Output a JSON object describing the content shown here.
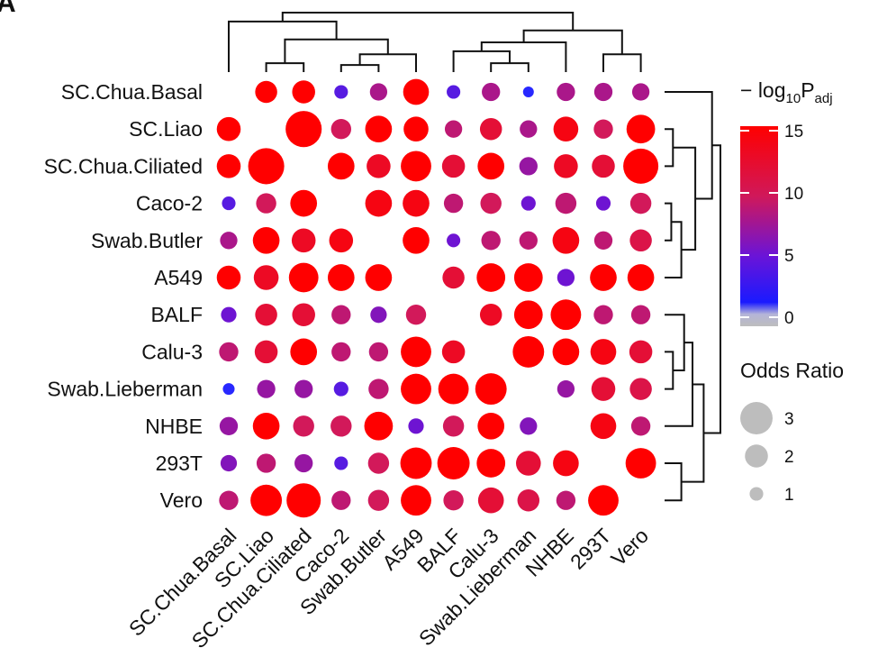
{
  "panel_label": "A",
  "chart_data": {
    "type": "heatmap",
    "subtype": "dot-matrix with hierarchical clustering",
    "labels": [
      "SC.Chua.Basal",
      "SC.Liao",
      "SC.Chua.Ciliated",
      "Caco-2",
      "Swab.Butler",
      "A549",
      "BALF",
      "Calu-3",
      "Swab.Lieberman",
      "NHBE",
      "293T",
      "Vero"
    ],
    "color_legend": {
      "title": "− log10Padj",
      "title_parts": {
        "prefix": "− log",
        "base": "10",
        "letter": "P",
        "subscript": "adj"
      },
      "ticks": [
        0,
        5,
        10,
        15
      ],
      "range": [
        0,
        15
      ],
      "colors": [
        "#bdbdbd",
        "#0000ff",
        "#ff0000"
      ]
    },
    "size_legend": {
      "title": "Odds Ratio",
      "values": [
        3,
        2,
        1
      ],
      "color": "#bdbdbd"
    },
    "odds_ratio": [
      [
        null,
        1.9,
        2.0,
        1.0,
        1.4,
        2.3,
        1.0,
        1.5,
        0.7,
        1.5,
        1.5,
        1.4
      ],
      [
        2.1,
        null,
        3.4,
        1.7,
        2.4,
        2.2,
        1.4,
        1.9,
        1.4,
        2.2,
        1.6,
        2.6
      ],
      [
        2.1,
        3.4,
        null,
        2.4,
        2.1,
        2.8,
        2.0,
        2.4,
        1.5,
        2.1,
        2.0,
        3.3
      ],
      [
        1.0,
        1.7,
        2.4,
        null,
        2.4,
        2.4,
        1.6,
        1.8,
        1.1,
        1.8,
        1.1,
        1.8
      ],
      [
        1.4,
        2.4,
        2.1,
        2.1,
        null,
        2.4,
        1.0,
        1.6,
        1.5,
        2.4,
        1.5,
        1.9
      ],
      [
        2.1,
        2.2,
        2.7,
        2.4,
        2.4,
        null,
        1.9,
        2.6,
        2.6,
        1.4,
        2.4,
        2.4
      ],
      [
        1.2,
        1.9,
        2.0,
        1.6,
        1.3,
        1.7,
        null,
        1.9,
        2.6,
        2.8,
        1.6,
        1.6
      ],
      [
        1.6,
        2.0,
        2.4,
        1.6,
        1.6,
        2.8,
        2.0,
        null,
        2.9,
        2.4,
        2.3,
        2.0
      ],
      [
        0.8,
        1.5,
        1.5,
        1.1,
        1.7,
        2.8,
        2.8,
        2.9,
        null,
        1.4,
        2.1,
        1.9
      ],
      [
        1.5,
        2.4,
        1.8,
        1.8,
        2.6,
        1.2,
        1.8,
        2.4,
        1.4,
        null,
        2.3,
        1.6
      ],
      [
        1.3,
        1.6,
        1.5,
        1.0,
        1.8,
        2.9,
        3.0,
        2.6,
        2.2,
        2.3,
        null,
        2.8
      ],
      [
        1.6,
        2.9,
        3.2,
        1.6,
        1.8,
        2.8,
        1.7,
        2.3,
        1.9,
        1.6,
        2.8,
        null
      ]
    ],
    "neg_log10_padj": [
      [
        null,
        15,
        15,
        4,
        8,
        15,
        4,
        8,
        2,
        8,
        8,
        8
      ],
      [
        15,
        null,
        15,
        10,
        15,
        15,
        9,
        12,
        8,
        14,
        10,
        15
      ],
      [
        15,
        15,
        null,
        15,
        13,
        15,
        12,
        15,
        7,
        13,
        12,
        15
      ],
      [
        4,
        10,
        15,
        null,
        14,
        14,
        9,
        10,
        5,
        9,
        5,
        10
      ],
      [
        8,
        15,
        13,
        14,
        null,
        15,
        5,
        9,
        9,
        14,
        9,
        11
      ],
      [
        15,
        13,
        15,
        15,
        15,
        null,
        12,
        15,
        15,
        5,
        15,
        15
      ],
      [
        5,
        12,
        12,
        9,
        6,
        10,
        null,
        13,
        15,
        15,
        9,
        9
      ],
      [
        9,
        12,
        15,
        9,
        9,
        15,
        13,
        null,
        15,
        15,
        14,
        12
      ],
      [
        2,
        7,
        7,
        4,
        9,
        15,
        15,
        15,
        null,
        7,
        12,
        11
      ],
      [
        7,
        15,
        10,
        10,
        15,
        5,
        10,
        15,
        6,
        null,
        14,
        9
      ],
      [
        6,
        9,
        7,
        4,
        10,
        15,
        15,
        15,
        12,
        14,
        null,
        15
      ],
      [
        9,
        15,
        15,
        9,
        10,
        15,
        10,
        12,
        11,
        9,
        15,
        null
      ]
    ]
  }
}
